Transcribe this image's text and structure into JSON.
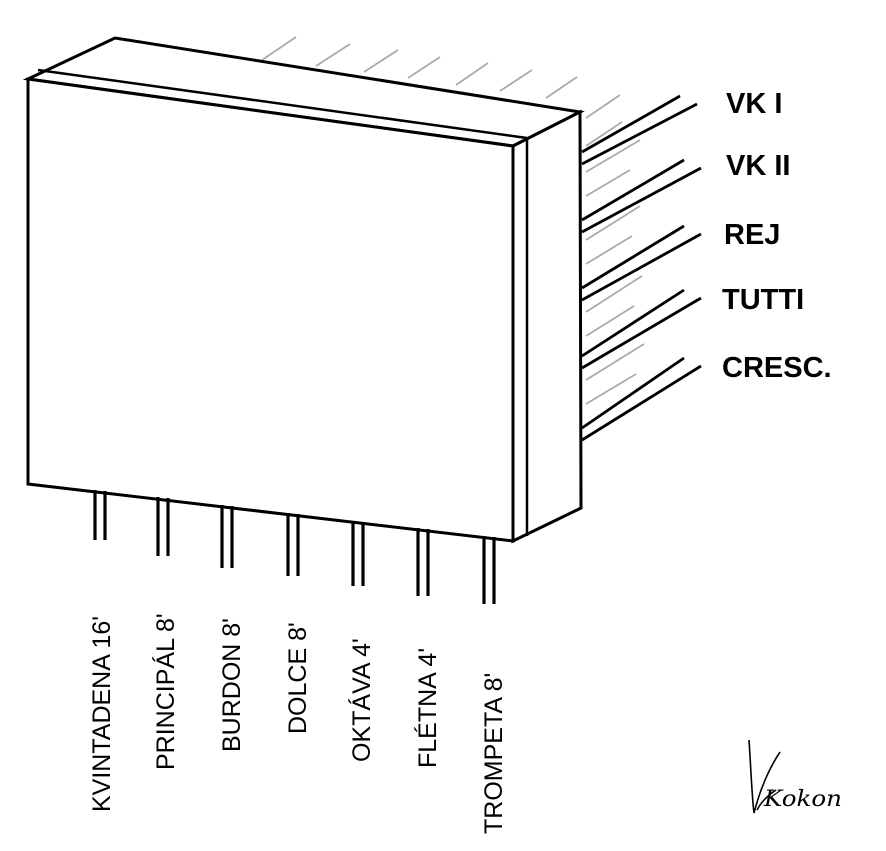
{
  "right_labels": [
    "VK I",
    "VK II",
    "REJ",
    "TUTTI",
    "CRESC."
  ],
  "bottom_labels": [
    "KVINTADENA 16'",
    "PRINCIPÁL 8'",
    "BURDON 8'",
    "DOLCE 8'",
    "OKTÁVA 4'",
    "FLÉTNA 4'",
    "TROMPETA  8'"
  ],
  "signature": "Kokon",
  "colors": {
    "stroke": "#000000",
    "faint": "#aaaaaa",
    "background": "#ffffff"
  }
}
